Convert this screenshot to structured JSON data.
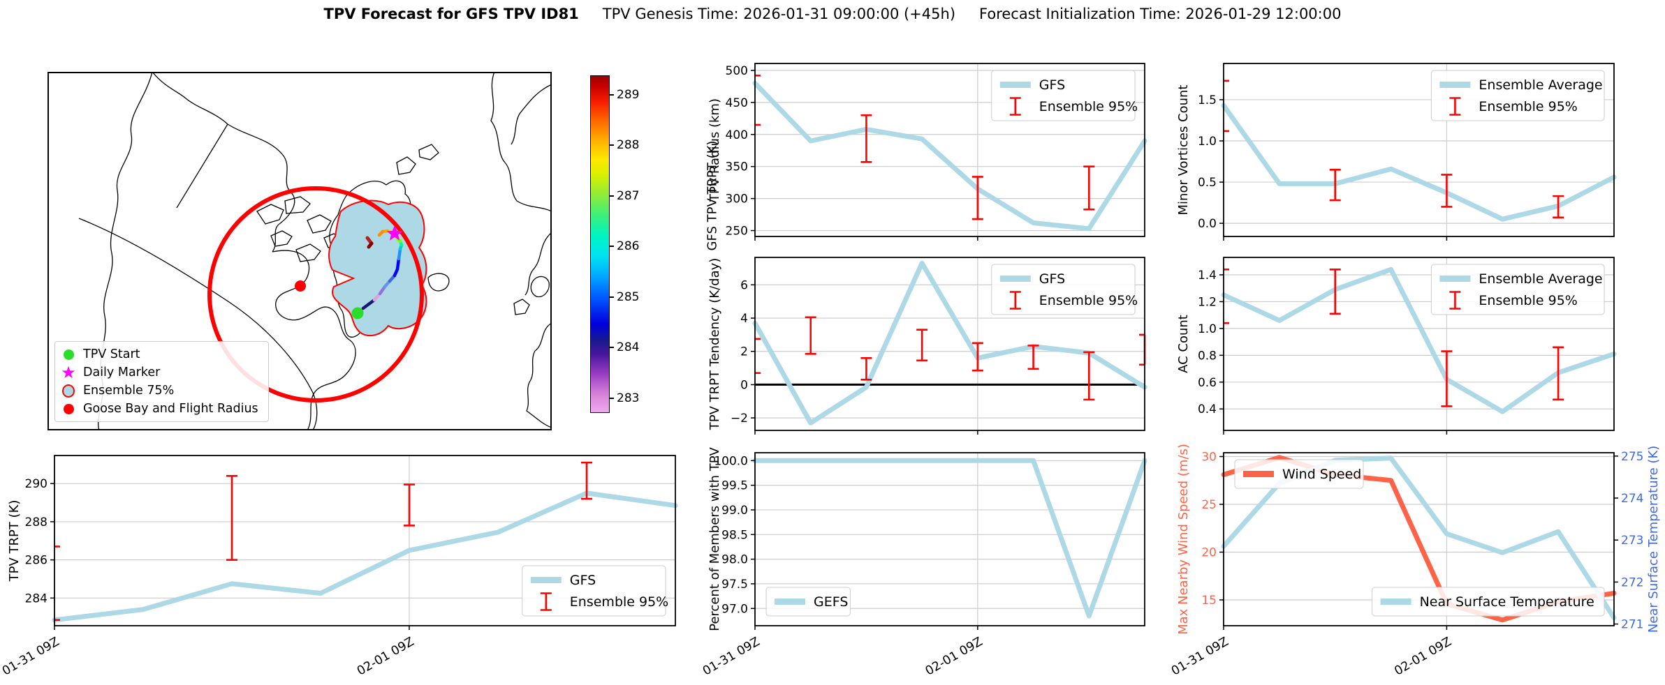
{
  "title": {
    "main": "TPV Forecast for GFS TPV ID81",
    "genesis": "TPV Genesis Time: 2026-01-31 09:00:00 (+45h)",
    "init": "Forecast Initialization Time: 2026-01-29 12:00:00"
  },
  "map": {
    "legend": [
      {
        "marker": "circle",
        "color": "#2bdd2b",
        "border": "none",
        "label": "TPV Start"
      },
      {
        "marker": "star",
        "color": "#ff00ff",
        "border": "none",
        "label": "Daily Marker"
      },
      {
        "marker": "circle",
        "color": "#add8e6",
        "border": "#ff0000",
        "label": "Ensemble 75%"
      },
      {
        "marker": "circle",
        "color": "#ff0000",
        "border": "none",
        "label": "Goose Bay and Flight Radius"
      }
    ],
    "colorbar": {
      "label": "GFS TPV TRPT (K)",
      "ticks": [
        283,
        284,
        285,
        286,
        287,
        288,
        289
      ],
      "range": [
        282.75,
        289.4
      ],
      "stops": [
        [
          282.75,
          "#eeaaee"
        ],
        [
          283.1,
          "#d883d8"
        ],
        [
          283.5,
          "#9b3ec4"
        ],
        [
          283.9,
          "#47159b"
        ],
        [
          284.15,
          "#1a1a8e"
        ],
        [
          284.5,
          "#0000dd"
        ],
        [
          285.0,
          "#0055ff"
        ],
        [
          285.45,
          "#00a9ff"
        ],
        [
          285.85,
          "#00e4f0"
        ],
        [
          286.25,
          "#00f4c2"
        ],
        [
          286.65,
          "#3cf07a"
        ],
        [
          287.05,
          "#90ec38"
        ],
        [
          287.45,
          "#d9f000"
        ],
        [
          287.75,
          "#ffe900"
        ],
        [
          288.1,
          "#ffb300"
        ],
        [
          288.5,
          "#ff6a00"
        ],
        [
          288.9,
          "#f51c00"
        ],
        [
          289.2,
          "#c60000"
        ],
        [
          289.4,
          "#9e0000"
        ]
      ]
    }
  },
  "xaxis_shared": {
    "n_points": 8,
    "grid_frac": 0.5714,
    "ticklabels": [
      {
        "frac": 0.0,
        "label": "01-31 09Z"
      },
      {
        "frac": 0.5714,
        "label": "02-01 09Z"
      }
    ]
  },
  "chart_data": [
    {
      "id": "tpv_radius",
      "type": "line",
      "axes": {
        "left": {
          "label": "TPV Radius (km)",
          "ylim": [
            240.8,
            510.8
          ],
          "ticks": [
            250,
            300,
            350,
            400,
            450,
            500
          ],
          "decimals": 0,
          "color": "#000000"
        }
      },
      "series": [
        {
          "name": "GFS",
          "axis": "left",
          "color": "#add8e6",
          "width": 7,
          "values": [
            480,
            390,
            408,
            393,
            315,
            262,
            253,
            390
          ]
        }
      ],
      "errorbars": [
        {
          "i": 0,
          "lo": 415,
          "hi": 492,
          "clip": "left"
        },
        {
          "i": 2,
          "lo": 357,
          "hi": 430
        },
        {
          "i": 4,
          "lo": 268,
          "hi": 334
        },
        {
          "i": 6,
          "lo": 283,
          "hi": 350
        }
      ],
      "legends": [
        {
          "pos": "top-right",
          "entries": [
            {
              "swatch": "line",
              "color": "#add8e6",
              "label": "GFS"
            },
            {
              "swatch": "errorbar",
              "color": "#ff0000",
              "label": "Ensemble 95%"
            }
          ]
        }
      ],
      "show_xticklabels": false
    },
    {
      "id": "trpt_tendency",
      "type": "line",
      "zeroline": true,
      "axes": {
        "left": {
          "label": "TPV TRPT Tendency (K/day)",
          "ylim": [
            -2.75,
            7.65
          ],
          "ticks": [
            -2,
            0,
            2,
            4,
            6
          ],
          "decimals": 0,
          "color": "#000000"
        }
      },
      "series": [
        {
          "name": "GFS",
          "axis": "left",
          "color": "#add8e6",
          "width": 7,
          "values": [
            3.7,
            -2.3,
            -0.15,
            7.3,
            1.6,
            2.3,
            1.9,
            -0.15
          ]
        }
      ],
      "errorbars": [
        {
          "i": 0,
          "lo": 0.7,
          "hi": 2.75,
          "clip": "left"
        },
        {
          "i": 1,
          "lo": 1.85,
          "hi": 4.05
        },
        {
          "i": 2,
          "lo": 0.3,
          "hi": 1.6
        },
        {
          "i": 3,
          "lo": 1.45,
          "hi": 3.3
        },
        {
          "i": 4,
          "lo": 0.85,
          "hi": 2.5
        },
        {
          "i": 5,
          "lo": 0.95,
          "hi": 2.35
        },
        {
          "i": 6,
          "lo": -0.9,
          "hi": 1.95
        },
        {
          "i": 7,
          "lo": 1.2,
          "hi": 3.0,
          "clip": "right"
        }
      ],
      "legends": [
        {
          "pos": "top-right",
          "entries": [
            {
              "swatch": "line",
              "color": "#add8e6",
              "label": "GFS"
            },
            {
              "swatch": "errorbar",
              "color": "#ff0000",
              "label": "Ensemble 95%"
            }
          ]
        }
      ],
      "show_xticklabels": false
    },
    {
      "id": "percent_members",
      "type": "line",
      "axes": {
        "left": {
          "label": "Percent of Members with TPV",
          "ylim": [
            96.65,
            100.16
          ],
          "ticks": [
            97.0,
            97.5,
            98.0,
            98.5,
            99.0,
            99.5,
            100.0
          ],
          "decimals": 1,
          "color": "#000000"
        }
      },
      "series": [
        {
          "name": "GEFS",
          "axis": "left",
          "color": "#add8e6",
          "width": 7,
          "values": [
            100,
            100,
            100,
            100,
            100,
            100,
            96.85,
            100
          ]
        }
      ],
      "errorbars": [],
      "legends": [
        {
          "pos": "bottom-left",
          "entries": [
            {
              "swatch": "line",
              "color": "#add8e6",
              "label": "GEFS"
            }
          ]
        }
      ],
      "show_xticklabels": true
    },
    {
      "id": "minor_vortices",
      "type": "line",
      "axes": {
        "left": {
          "label": "Minor Vortices Count",
          "ylim": [
            -0.16,
            1.94
          ],
          "ticks": [
            0.0,
            0.5,
            1.0,
            1.5
          ],
          "decimals": 1,
          "color": "#000000"
        }
      },
      "series": [
        {
          "name": "Ensemble Average",
          "axis": "left",
          "color": "#add8e6",
          "width": 7,
          "values": [
            1.43,
            0.48,
            0.48,
            0.66,
            0.37,
            0.05,
            0.21,
            0.56
          ]
        }
      ],
      "errorbars": [
        {
          "i": 0,
          "lo": 1.12,
          "hi": 1.73,
          "clip": "left"
        },
        {
          "i": 2,
          "lo": 0.28,
          "hi": 0.65
        },
        {
          "i": 4,
          "lo": 0.2,
          "hi": 0.59
        },
        {
          "i": 6,
          "lo": 0.07,
          "hi": 0.33
        }
      ],
      "legends": [
        {
          "pos": "top-right",
          "entries": [
            {
              "swatch": "line",
              "color": "#add8e6",
              "label": "Ensemble Average"
            },
            {
              "swatch": "errorbar",
              "color": "#ff0000",
              "label": "Ensemble 95%"
            }
          ]
        }
      ],
      "show_xticklabels": false
    },
    {
      "id": "ac_count",
      "type": "line",
      "axes": {
        "left": {
          "label": "AC Count",
          "ylim": [
            0.24,
            1.53
          ],
          "ticks": [
            0.4,
            0.6,
            0.8,
            1.0,
            1.2,
            1.4
          ],
          "decimals": 1,
          "color": "#000000"
        }
      },
      "series": [
        {
          "name": "Ensemble Average",
          "axis": "left",
          "color": "#add8e6",
          "width": 7,
          "values": [
            1.25,
            1.06,
            1.29,
            1.44,
            0.62,
            0.38,
            0.67,
            0.81
          ]
        }
      ],
      "errorbars": [
        {
          "i": 0,
          "lo": 1.04,
          "hi": 1.44,
          "clip": "left"
        },
        {
          "i": 2,
          "lo": 1.11,
          "hi": 1.44
        },
        {
          "i": 4,
          "lo": 0.42,
          "hi": 0.83
        },
        {
          "i": 6,
          "lo": 0.47,
          "hi": 0.86
        }
      ],
      "legends": [
        {
          "pos": "top-right",
          "entries": [
            {
              "swatch": "line",
              "color": "#add8e6",
              "label": "Ensemble Average"
            },
            {
              "swatch": "errorbar",
              "color": "#ff0000",
              "label": "Ensemble 95%"
            }
          ]
        }
      ],
      "show_xticklabels": false
    },
    {
      "id": "wind_temp",
      "type": "line",
      "axes": {
        "left": {
          "label": "Max Nearby Wind Speed (m/s)",
          "ylim": [
            12.3,
            30.4
          ],
          "ticks": [
            15,
            20,
            25,
            30
          ],
          "decimals": 0,
          "color": "#ff6347"
        },
        "right": {
          "label": "Near Surface Temperature (K)",
          "ylim": [
            270.96,
            275.08
          ],
          "ticks": [
            271,
            272,
            273,
            274,
            275
          ],
          "decimals": 0,
          "color": "#4169e1"
        }
      },
      "series": [
        {
          "name": "Wind Speed",
          "axis": "left",
          "color": "#ff6347",
          "width": 7,
          "values": [
            28.1,
            29.9,
            28.1,
            27.5,
            14.6,
            12.9,
            14.8,
            15.7
          ]
        },
        {
          "name": "Near Surface Temperature",
          "axis": "right",
          "color": "#add8e6",
          "width": 7,
          "values": [
            272.85,
            274.35,
            274.9,
            274.95,
            273.15,
            272.7,
            273.2,
            271.15
          ]
        }
      ],
      "errorbars": [],
      "legends": [
        {
          "pos": "top-left",
          "entries": [
            {
              "swatch": "line",
              "color": "#ff6347",
              "label": "Wind Speed"
            }
          ]
        },
        {
          "pos": "bottom-right",
          "entries": [
            {
              "swatch": "line",
              "color": "#add8e6",
              "label": "Near Surface Temperature"
            }
          ]
        }
      ],
      "show_xticklabels": true
    },
    {
      "id": "tpv_trpt",
      "type": "line",
      "axes": {
        "left": {
          "label": "TPV TRPT (K)",
          "ylim": [
            282.55,
            291.47
          ],
          "ticks": [
            284,
            286,
            288,
            290
          ],
          "decimals": 0,
          "color": "#000000"
        }
      },
      "series": [
        {
          "name": "GFS",
          "axis": "left",
          "color": "#add8e6",
          "width": 7,
          "values": [
            282.85,
            283.4,
            284.75,
            284.25,
            286.5,
            287.45,
            289.5,
            288.85
          ]
        }
      ],
      "errorbars": [
        {
          "i": 0,
          "lo": 282.85,
          "hi": 286.7,
          "clip": "left"
        },
        {
          "i": 2,
          "lo": 286.0,
          "hi": 290.4
        },
        {
          "i": 4,
          "lo": 287.8,
          "hi": 289.95
        },
        {
          "i": 6,
          "lo": 289.2,
          "hi": 291.1
        }
      ],
      "legends": [
        {
          "pos": "bottom-right",
          "entries": [
            {
              "swatch": "line",
              "color": "#add8e6",
              "label": "GFS"
            },
            {
              "swatch": "errorbar",
              "color": "#ff0000",
              "label": "Ensemble 95%"
            }
          ]
        }
      ],
      "show_xticklabels": true
    }
  ],
  "colors": {
    "gfs_line": "#add8e6",
    "ensemble_bar": "#ff0000",
    "wind": "#ff6347",
    "temp_axis": "#4169e1",
    "grid": "#cccccc",
    "flight_radius": "#ff0000",
    "ensemble75_fill": "#add8e6",
    "tpv_start": "#2bdd2b",
    "daily_marker": "#ff00ff"
  }
}
